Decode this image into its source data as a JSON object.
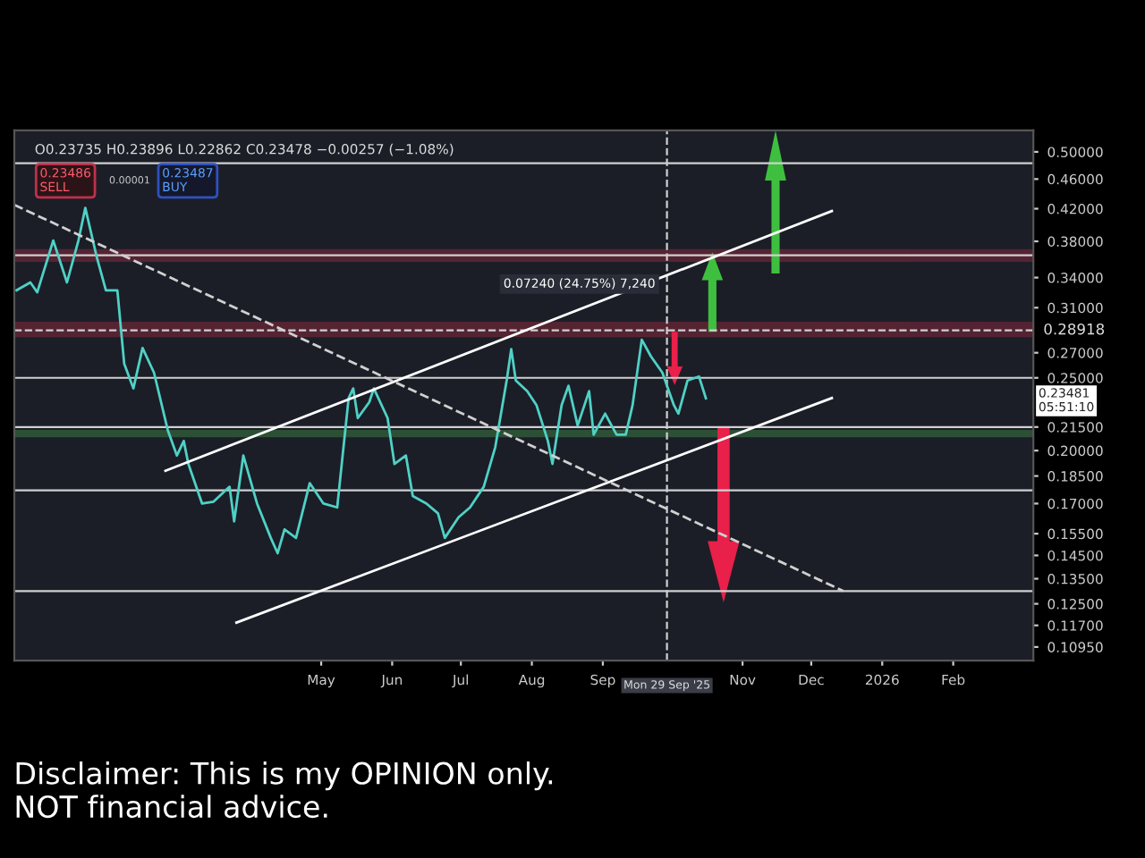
{
  "chart_data": {
    "type": "line",
    "log": "y",
    "grid": false,
    "legend": false,
    "xlim": [
      "2024-12-18",
      "2026-03-08"
    ],
    "xticks": [
      {
        "value": "2025-05-01",
        "label": "May"
      },
      {
        "value": "2025-06-01",
        "label": "Jun"
      },
      {
        "value": "2025-07-01",
        "label": "Jul"
      },
      {
        "value": "2025-08-01",
        "label": "Aug"
      },
      {
        "value": "2025-09-01",
        "label": "Sep"
      },
      {
        "value": "2025-11-01",
        "label": "Nov"
      },
      {
        "value": "2025-12-01",
        "label": "Dec"
      },
      {
        "value": "2026-01-01",
        "label": "2026"
      },
      {
        "value": "2026-02-01",
        "label": "Feb"
      }
    ],
    "ylim": [
      0.105,
      0.534
    ],
    "yticks": [
      {
        "value": 0.5,
        "label": "0.50000"
      },
      {
        "value": 0.46,
        "label": "0.46000"
      },
      {
        "value": 0.42,
        "label": "0.42000"
      },
      {
        "value": 0.38,
        "label": "0.38000"
      },
      {
        "value": 0.34,
        "label": "0.34000"
      },
      {
        "value": 0.31,
        "label": "0.31000"
      },
      {
        "value": 0.27,
        "label": "0.27000"
      },
      {
        "value": 0.25,
        "label": "0.25000"
      },
      {
        "value": 0.215,
        "label": "0.21500"
      },
      {
        "value": 0.2,
        "label": "0.20000"
      },
      {
        "value": 0.185,
        "label": "0.18500"
      },
      {
        "value": 0.17,
        "label": "0.17000"
      },
      {
        "value": 0.155,
        "label": "0.15500"
      },
      {
        "value": 0.145,
        "label": "0.14500"
      },
      {
        "value": 0.135,
        "label": "0.13500"
      },
      {
        "value": 0.125,
        "label": "0.12500"
      },
      {
        "value": 0.117,
        "label": "0.11700"
      },
      {
        "value": 0.1095,
        "label": "0.10950"
      }
    ],
    "series": [
      {
        "color": "#4fd1c5",
        "line_style": "solid",
        "x": [
          "2024-12-19",
          "2024-12-25",
          "2024-12-28",
          "2025-01-04",
          "2025-01-10",
          "2025-01-15",
          "2025-01-18",
          "2025-01-23",
          "2025-01-27",
          "2025-02-01",
          "2025-02-04",
          "2025-02-08",
          "2025-02-12",
          "2025-02-17",
          "2025-02-23",
          "2025-02-27",
          "2025-03-02",
          "2025-03-04",
          "2025-03-10",
          "2025-03-15",
          "2025-03-22",
          "2025-03-24",
          "2025-03-28",
          "2025-04-03",
          "2025-04-09",
          "2025-04-12",
          "2025-04-15",
          "2025-04-20",
          "2025-04-26",
          "2025-05-02",
          "2025-05-08",
          "2025-05-13",
          "2025-05-15",
          "2025-05-17",
          "2025-05-22",
          "2025-05-24",
          "2025-05-30",
          "2025-06-02",
          "2025-06-07",
          "2025-06-10",
          "2025-06-16",
          "2025-06-21",
          "2025-06-24",
          "2025-06-30",
          "2025-07-05",
          "2025-07-11",
          "2025-07-16",
          "2025-07-21",
          "2025-07-23",
          "2025-07-25",
          "2025-07-30",
          "2025-08-03",
          "2025-08-08",
          "2025-08-10",
          "2025-08-14",
          "2025-08-17",
          "2025-08-21",
          "2025-08-26",
          "2025-08-28",
          "2025-09-02",
          "2025-09-07",
          "2025-09-11",
          "2025-09-14",
          "2025-09-18",
          "2025-09-22",
          "2025-09-27",
          "2025-10-02",
          "2025-10-04",
          "2025-10-08",
          "2025-10-13",
          "2025-10-16"
        ],
        "values": [
          0.327,
          0.335,
          0.325,
          0.381,
          0.335,
          0.381,
          0.421,
          0.362,
          0.327,
          0.327,
          0.261,
          0.242,
          0.274,
          0.254,
          0.213,
          0.197,
          0.206,
          0.192,
          0.17,
          0.171,
          0.179,
          0.161,
          0.197,
          0.17,
          0.153,
          0.146,
          0.157,
          0.153,
          0.181,
          0.17,
          0.168,
          0.235,
          0.242,
          0.221,
          0.232,
          0.242,
          0.221,
          0.192,
          0.197,
          0.174,
          0.17,
          0.165,
          0.153,
          0.163,
          0.168,
          0.179,
          0.202,
          0.248,
          0.273,
          0.248,
          0.24,
          0.23,
          0.206,
          0.192,
          0.23,
          0.244,
          0.216,
          0.24,
          0.21,
          0.224,
          0.21,
          0.21,
          0.23,
          0.281,
          0.267,
          0.254,
          0.23,
          0.224,
          0.248,
          0.251,
          0.23478
        ]
      },
      {
        "color": "#ffffff",
        "line_style": "solid",
        "x": [
          "2025-02-22",
          "2025-12-10"
        ],
        "values": [
          0.188,
          0.417
        ]
      },
      {
        "color": "#ffffff",
        "line_style": "solid",
        "x": [
          "2025-03-25",
          "2025-12-10"
        ],
        "values": [
          0.118,
          0.235
        ]
      },
      {
        "color": "#d0d0d0",
        "line_style": "dashed",
        "x": [
          "2024-12-18",
          "2025-12-15"
        ],
        "values": [
          0.425,
          0.13
        ]
      }
    ],
    "ref_lines": [
      {
        "axis": "y",
        "value": 0.483,
        "color": "#d0d0d0",
        "line_style": "solid"
      },
      {
        "axis": "y",
        "value": 0.364,
        "color": "#d0d0d0",
        "line_style": "solid"
      },
      {
        "axis": "y",
        "value": 0.28918,
        "label": "0.28918",
        "color": "#d0d0d0",
        "line_style": "dashed"
      },
      {
        "axis": "y",
        "value": 0.25,
        "color": "#d0d0d0",
        "line_style": "solid"
      },
      {
        "axis": "y",
        "value": 0.215,
        "color": "#d0d0d0",
        "line_style": "solid"
      },
      {
        "axis": "y",
        "value": 0.177,
        "color": "#d0d0d0",
        "line_style": "solid"
      },
      {
        "axis": "y",
        "value": 0.13,
        "color": "#d0d0d0",
        "line_style": "solid"
      },
      {
        "axis": "x",
        "value": "2025-09-29",
        "label": "Mon 29 Sep '25",
        "color": "#d0d0d0",
        "line_style": "dashed"
      }
    ],
    "bands": [
      {
        "axis": "y",
        "from": 0.358,
        "to": 0.37,
        "color": "#c0304a"
      },
      {
        "axis": "y",
        "from": 0.284,
        "to": 0.296,
        "color": "#c0304a"
      },
      {
        "axis": "y",
        "from": 0.209,
        "to": 0.2125,
        "color": "#4caf50"
      }
    ],
    "annotations": [
      "O0.23735 H0.23896 L0.22862 C0.23478 −0.00257 (−1.08%)",
      "0.23486\nSELL",
      "0.00001",
      "0.23487\nBUY",
      "0.07240 (24.75%) 7,240",
      "0.23481\n05:51:10",
      "Disclaimer: This is my OPINION only.\nNOT financial advice."
    ]
  }
}
